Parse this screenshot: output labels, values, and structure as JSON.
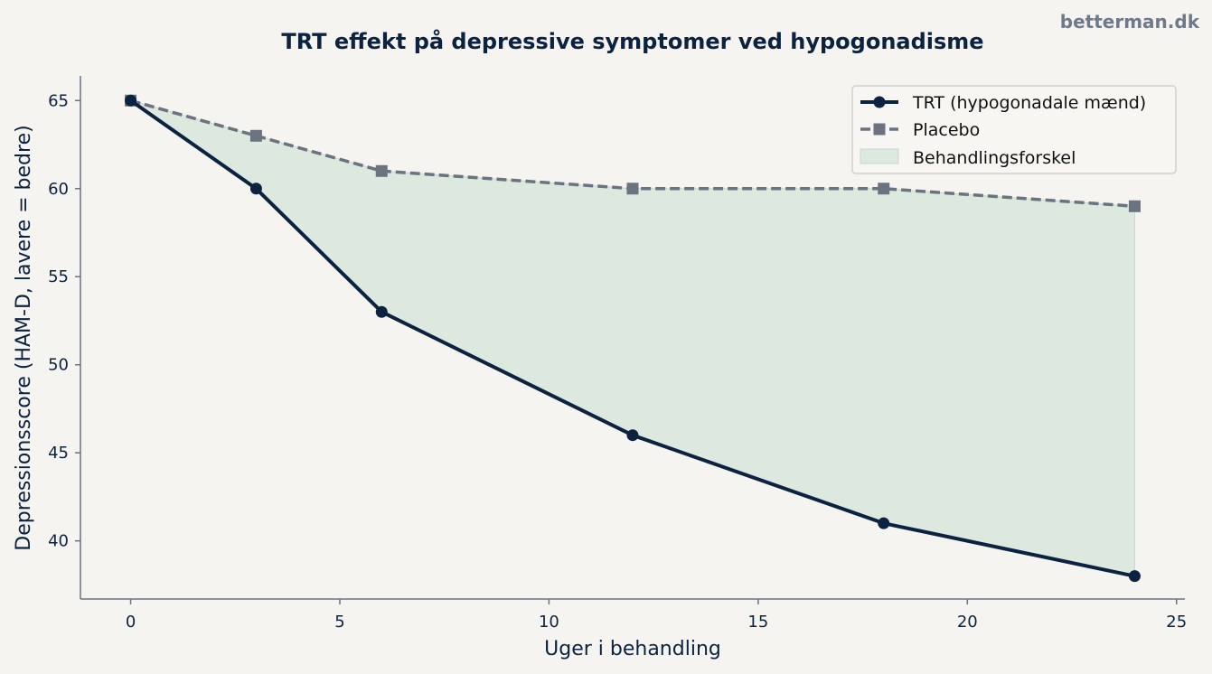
{
  "watermark": "betterman.dk",
  "colors": {
    "background": "#f5f4f0",
    "text": "#0b2340",
    "trt": "#0b2340",
    "placebo": "#6b7280",
    "fill": "#dde8df",
    "axis": "#6b7280"
  },
  "chart_data": {
    "type": "line",
    "title": "TRT effekt på depressive symptomer ved hypogonadisme",
    "xlabel": "Uger i behandling",
    "ylabel": "Depressionsscore (HAM-D, lavere = bedre)",
    "x": [
      0,
      3,
      6,
      12,
      18,
      24
    ],
    "series": [
      {
        "name": "TRT (hypogonadale mænd)",
        "values": [
          65,
          60,
          53,
          46,
          41,
          38
        ],
        "style": "solid",
        "marker": "circle",
        "color": "#0b2340"
      },
      {
        "name": "Placebo",
        "values": [
          65,
          63,
          61,
          60,
          60,
          59
        ],
        "style": "dashed",
        "marker": "square",
        "color": "#6b7280"
      }
    ],
    "fill_between": {
      "name": "Behandlingsforskel",
      "color": "#dde8df"
    },
    "xlim": [
      -1.2,
      25.2
    ],
    "ylim": [
      36.7,
      66.4
    ],
    "xticks": [
      0,
      5,
      10,
      15,
      20,
      25
    ],
    "yticks": [
      40,
      45,
      50,
      55,
      60,
      65
    ],
    "grid": false,
    "legend_position": "top-right"
  }
}
